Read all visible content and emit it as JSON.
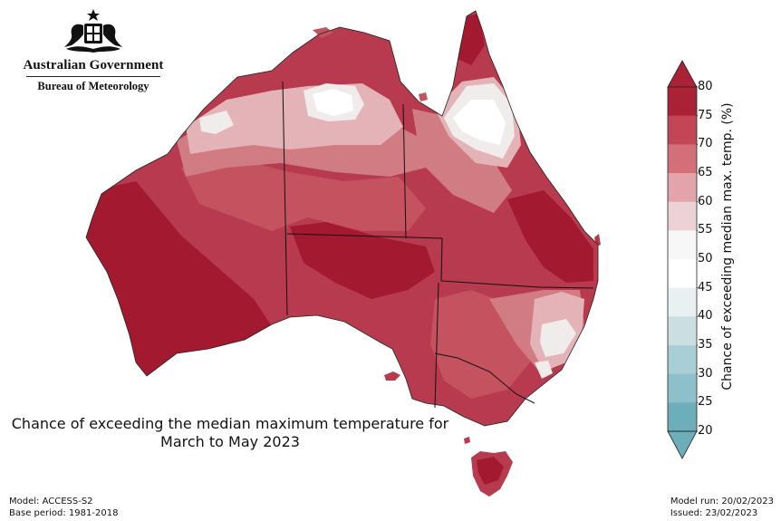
{
  "logo": {
    "title": "Australian Government",
    "subtitle": "Bureau of Meteorology"
  },
  "map": {
    "title_line1": "Chance of exceeding the median maximum temperature for",
    "title_line2": "March to May 2023",
    "colors": {
      "land_base": "#b73a4e",
      "darkest": "#a3192f",
      "c70_75": "#c4535f",
      "c65_70": "#d17c83",
      "c60_65": "#e3b3b8",
      "c55_60": "#f0ecec",
      "c50_55": "#ffffff"
    }
  },
  "colorbar": {
    "axis_label": "Chance of exceeding median max. temp. (%)",
    "ticks": [
      "80",
      "75",
      "70",
      "65",
      "60",
      "55",
      "50",
      "45",
      "40",
      "35",
      "30",
      "25",
      "20"
    ],
    "colors": [
      "#ab2236",
      "#c24656",
      "#d36f78",
      "#e2a4aa",
      "#ecd2d5",
      "#f7f7f7",
      "#ffffff",
      "#e8f0f2",
      "#cbdfe2",
      "#a9cfd6",
      "#8dc0cb",
      "#6daebb"
    ]
  },
  "footer": {
    "model": "Model: ACCESS-S2",
    "base_period": "Base period: 1981-2018",
    "model_run": "Model run: 20/02/2023",
    "issued": "Issued: 23/02/2023"
  }
}
